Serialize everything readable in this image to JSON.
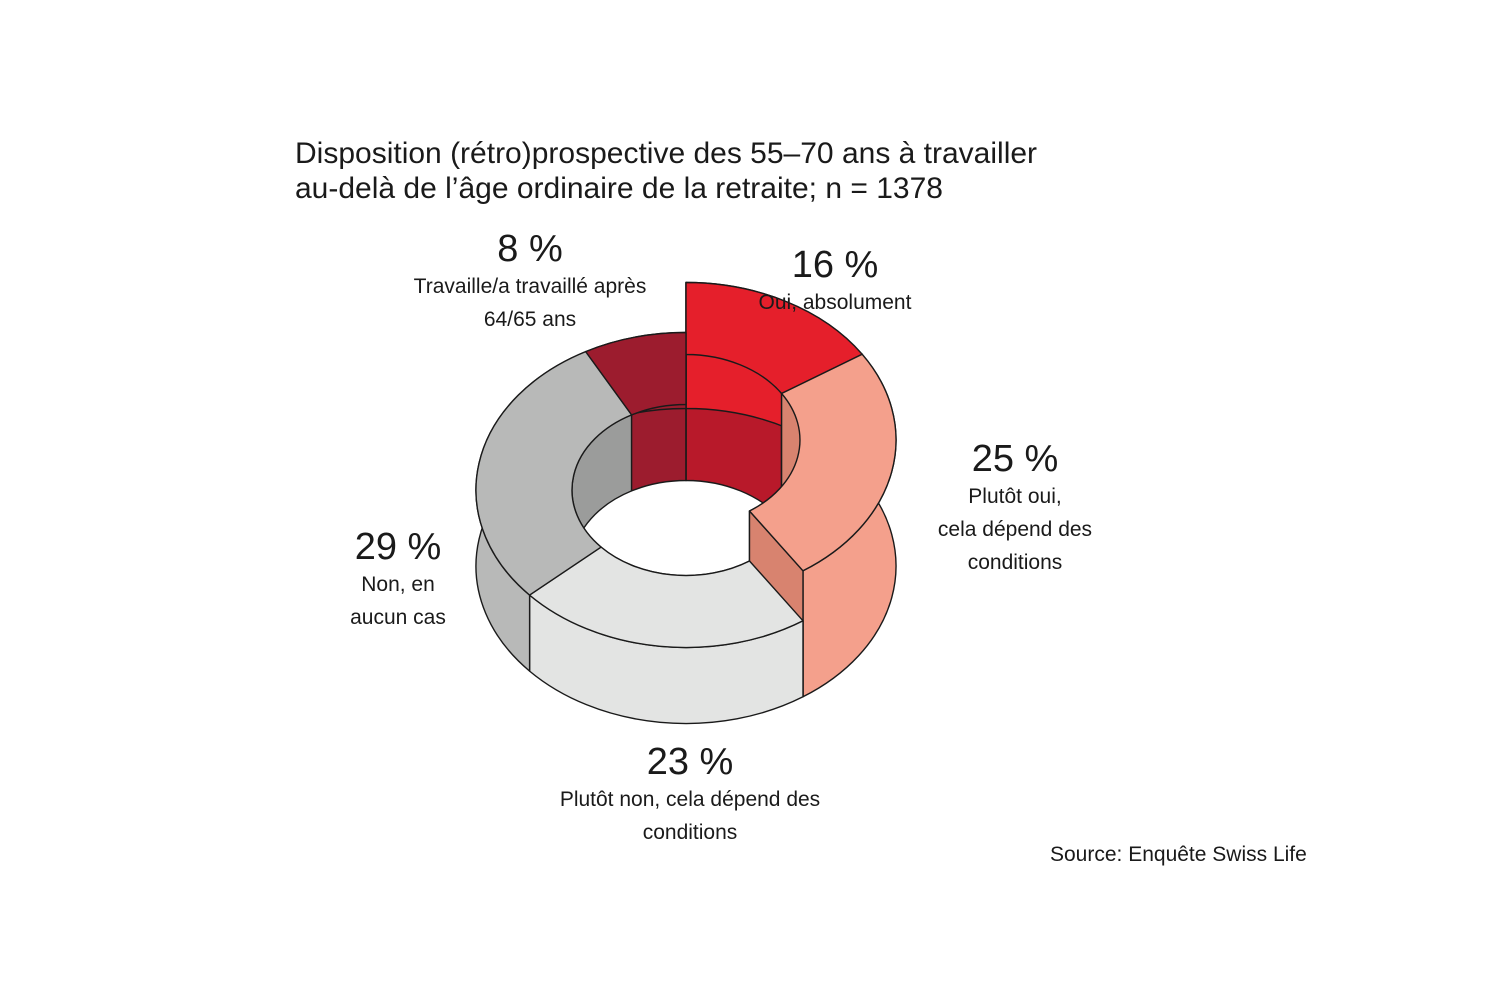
{
  "title_lines": [
    "Disposition (rétro)prospective des 55–70 ans à travailler",
    "au-delà de l’âge ordinaire de la retraite; n = 1378"
  ],
  "source": "Source: Enquête Swiss Life",
  "chart_data": {
    "type": "pie",
    "variant": "3d-donut",
    "slices": [
      {
        "value": 16,
        "pct_label": "16 %",
        "desc": [
          "Oui, absolument"
        ],
        "color": "#e51f2b"
      },
      {
        "value": 25,
        "pct_label": "25 %",
        "desc": [
          "Plutôt oui,",
          "cela dépend des",
          "conditions"
        ],
        "color": "#f4a08c"
      },
      {
        "value": 23,
        "pct_label": "23 %",
        "desc": [
          "Plutôt non, cela dépend des",
          "conditions"
        ],
        "color": "#e3e4e3"
      },
      {
        "value": 29,
        "pct_label": "29 %",
        "desc": [
          "Non, en",
          "aucun cas"
        ],
        "color": "#b8b9b8"
      },
      {
        "value": 8,
        "pct_label": "8 %",
        "desc": [
          "Travaille/a travaillé après",
          "64/65 ans"
        ],
        "color": "#9c1c2e"
      }
    ]
  }
}
